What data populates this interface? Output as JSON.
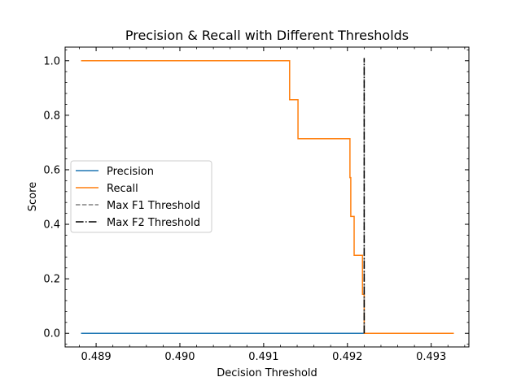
{
  "chart_data": {
    "type": "line",
    "title": "Precision & Recall with Different Thresholds",
    "xlabel": "Decision Threshold",
    "ylabel": "Score",
    "xlim": [
      0.48863,
      0.49345
    ],
    "ylim": [
      -0.05,
      1.05
    ],
    "xticks": [
      0.489,
      0.49,
      0.491,
      0.492,
      0.493
    ],
    "xtick_labels": [
      "0.489",
      "0.490",
      "0.491",
      "0.492",
      "0.493"
    ],
    "yticks": [
      0.0,
      0.2,
      0.4,
      0.6,
      0.8,
      1.0
    ],
    "ytick_labels": [
      "0.0",
      "0.2",
      "0.4",
      "0.6",
      "0.8",
      "1.0"
    ],
    "grid": false,
    "legend_position": "center-left",
    "series": [
      {
        "name": "Precision",
        "color": "#1f77b4",
        "style": "solid",
        "x": [
          0.48882,
          0.4922,
          0.49222,
          0.49327
        ],
        "y": [
          0.0,
          0.0,
          0.0,
          0.0
        ]
      },
      {
        "name": "Recall",
        "color": "#ff7f0e",
        "style": "solid-step",
        "x": [
          0.48882,
          0.49131,
          0.49131,
          0.49141,
          0.49141,
          0.49203,
          0.49203,
          0.49204,
          0.49204,
          0.49208,
          0.49208,
          0.49218,
          0.49218,
          0.4922,
          0.4922,
          0.49222,
          0.49222,
          0.49327
        ],
        "y": [
          1.0,
          1.0,
          0.857,
          0.857,
          0.714,
          0.714,
          0.571,
          0.571,
          0.429,
          0.429,
          0.286,
          0.286,
          0.143,
          0.143,
          0.0,
          0.0,
          0.0,
          0.0
        ]
      }
    ],
    "vlines": [
      {
        "name": "Max F1 Threshold",
        "x": 0.4922,
        "color": "#808080",
        "style": "dashed"
      },
      {
        "name": "Max F2 Threshold",
        "x": 0.4922,
        "color": "#000000",
        "style": "dashdot"
      }
    ]
  }
}
